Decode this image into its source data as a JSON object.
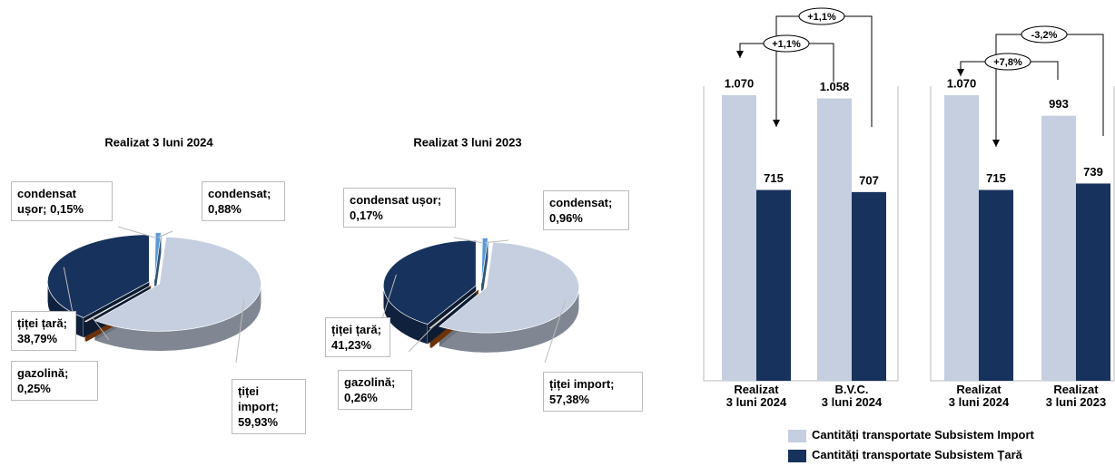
{
  "chart_data": [
    {
      "type": "pie",
      "title": "Realizat 3 luni 2024",
      "categories": [
        "condensat ușor;",
        "condensat;",
        "țiței import;",
        "gazolină;",
        "țiței țară;"
      ],
      "values": [
        0.15,
        0.88,
        59.93,
        0.25,
        38.79
      ],
      "value_labels": [
        "0,15%",
        "0,88%",
        "59,93%",
        "0,25%",
        "38,79%"
      ],
      "colors": [
        "#9dc3e6",
        "#5b9bd5",
        "#c5cfe0",
        "#c55a11",
        "#17325c"
      ]
    },
    {
      "type": "pie",
      "title": "Realizat 3 luni 2023",
      "categories": [
        "condensat ușor;",
        "condensat;",
        "țiței import;",
        "gazolină;",
        "țiței țară;"
      ],
      "values": [
        0.17,
        0.96,
        57.38,
        0.26,
        41.23
      ],
      "value_labels": [
        "0,17%",
        "0,96%",
        "57,38%",
        "0,26%",
        "41,23%"
      ],
      "colors": [
        "#9dc3e6",
        "#5b9bd5",
        "#c5cfe0",
        "#c55a11",
        "#17325c"
      ]
    },
    {
      "type": "bar",
      "categories": [
        "Realizat\n3 luni 2024",
        "B.V.C.\n3 luni 2024",
        "Realizat\n3 luni 2024",
        "Realizat\n3 luni 2023"
      ],
      "series": [
        {
          "name": "Cantități transportate Subsistem Import",
          "color": "#c5cfe0",
          "values": [
            1070,
            1058,
            1070,
            993
          ],
          "value_labels": [
            "1.070",
            "1.058",
            "1.070",
            "993"
          ]
        },
        {
          "name": "Cantități transportate Subsistem Țară",
          "color": "#17325c",
          "values": [
            715,
            707,
            715,
            739
          ]
        }
      ],
      "annotations": [
        "+1,1%",
        "+1,1%",
        "-3,2%",
        "+7,8%"
      ]
    }
  ]
}
